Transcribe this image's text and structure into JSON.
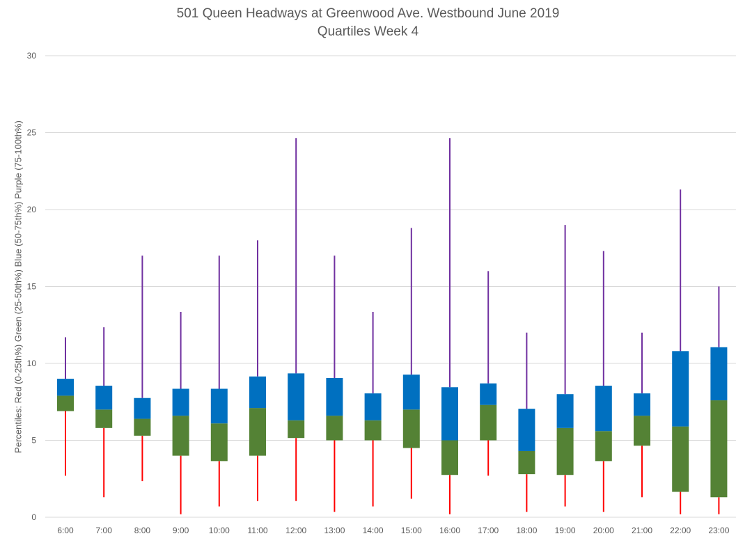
{
  "chart_data": {
    "type": "box",
    "title": "501 Queen Headways at Greenwood Ave. Westbound June 2019",
    "subtitle": "Quartiles Week 4",
    "xlabel": "",
    "ylabel": "Percentiles:  Red (0-25th%)  Green (25-50th%)  Blue (50-75th%)  Purple (75-100th%)",
    "ylim": [
      0,
      30
    ],
    "yticks": [
      0,
      5,
      10,
      15,
      20,
      25,
      30
    ],
    "grid": true,
    "colors": {
      "min_whisker": "#ff0000",
      "q1_median": "#548235",
      "median_q3": "#0070c0",
      "max_whisker": "#7030a0",
      "grid": "#d9d9d9"
    },
    "categories": [
      "6:00",
      "7:00",
      "8:00",
      "9:00",
      "10:00",
      "11:00",
      "12:00",
      "13:00",
      "14:00",
      "15:00",
      "16:00",
      "17:00",
      "18:00",
      "19:00",
      "20:00",
      "21:00",
      "22:00",
      "23:00"
    ],
    "min": [
      2.7,
      1.3,
      2.35,
      0.2,
      0.7,
      1.05,
      1.05,
      0.35,
      0.7,
      1.2,
      0.2,
      2.7,
      0.35,
      0.7,
      0.35,
      1.3,
      0.2,
      0.2
    ],
    "q1": [
      6.9,
      5.8,
      5.3,
      4.0,
      3.65,
      4.0,
      5.15,
      5.0,
      5.0,
      4.5,
      2.75,
      5.0,
      2.8,
      2.75,
      3.65,
      4.65,
      1.65,
      1.3
    ],
    "median": [
      7.9,
      7.0,
      6.4,
      6.6,
      6.1,
      7.1,
      6.3,
      6.6,
      6.3,
      7.0,
      5.0,
      7.3,
      4.3,
      5.8,
      5.6,
      6.6,
      5.9,
      7.6
    ],
    "q3": [
      9.0,
      8.55,
      7.75,
      8.35,
      8.35,
      9.15,
      9.35,
      9.05,
      8.05,
      9.27,
      8.45,
      8.7,
      7.05,
      8.0,
      8.55,
      8.05,
      10.8,
      11.05
    ],
    "max": [
      11.7,
      12.35,
      17.0,
      13.35,
      17.0,
      18.0,
      24.65,
      17.0,
      13.35,
      18.8,
      24.65,
      16.0,
      12.0,
      19.0,
      17.3,
      12.0,
      21.3,
      15.0
    ]
  }
}
